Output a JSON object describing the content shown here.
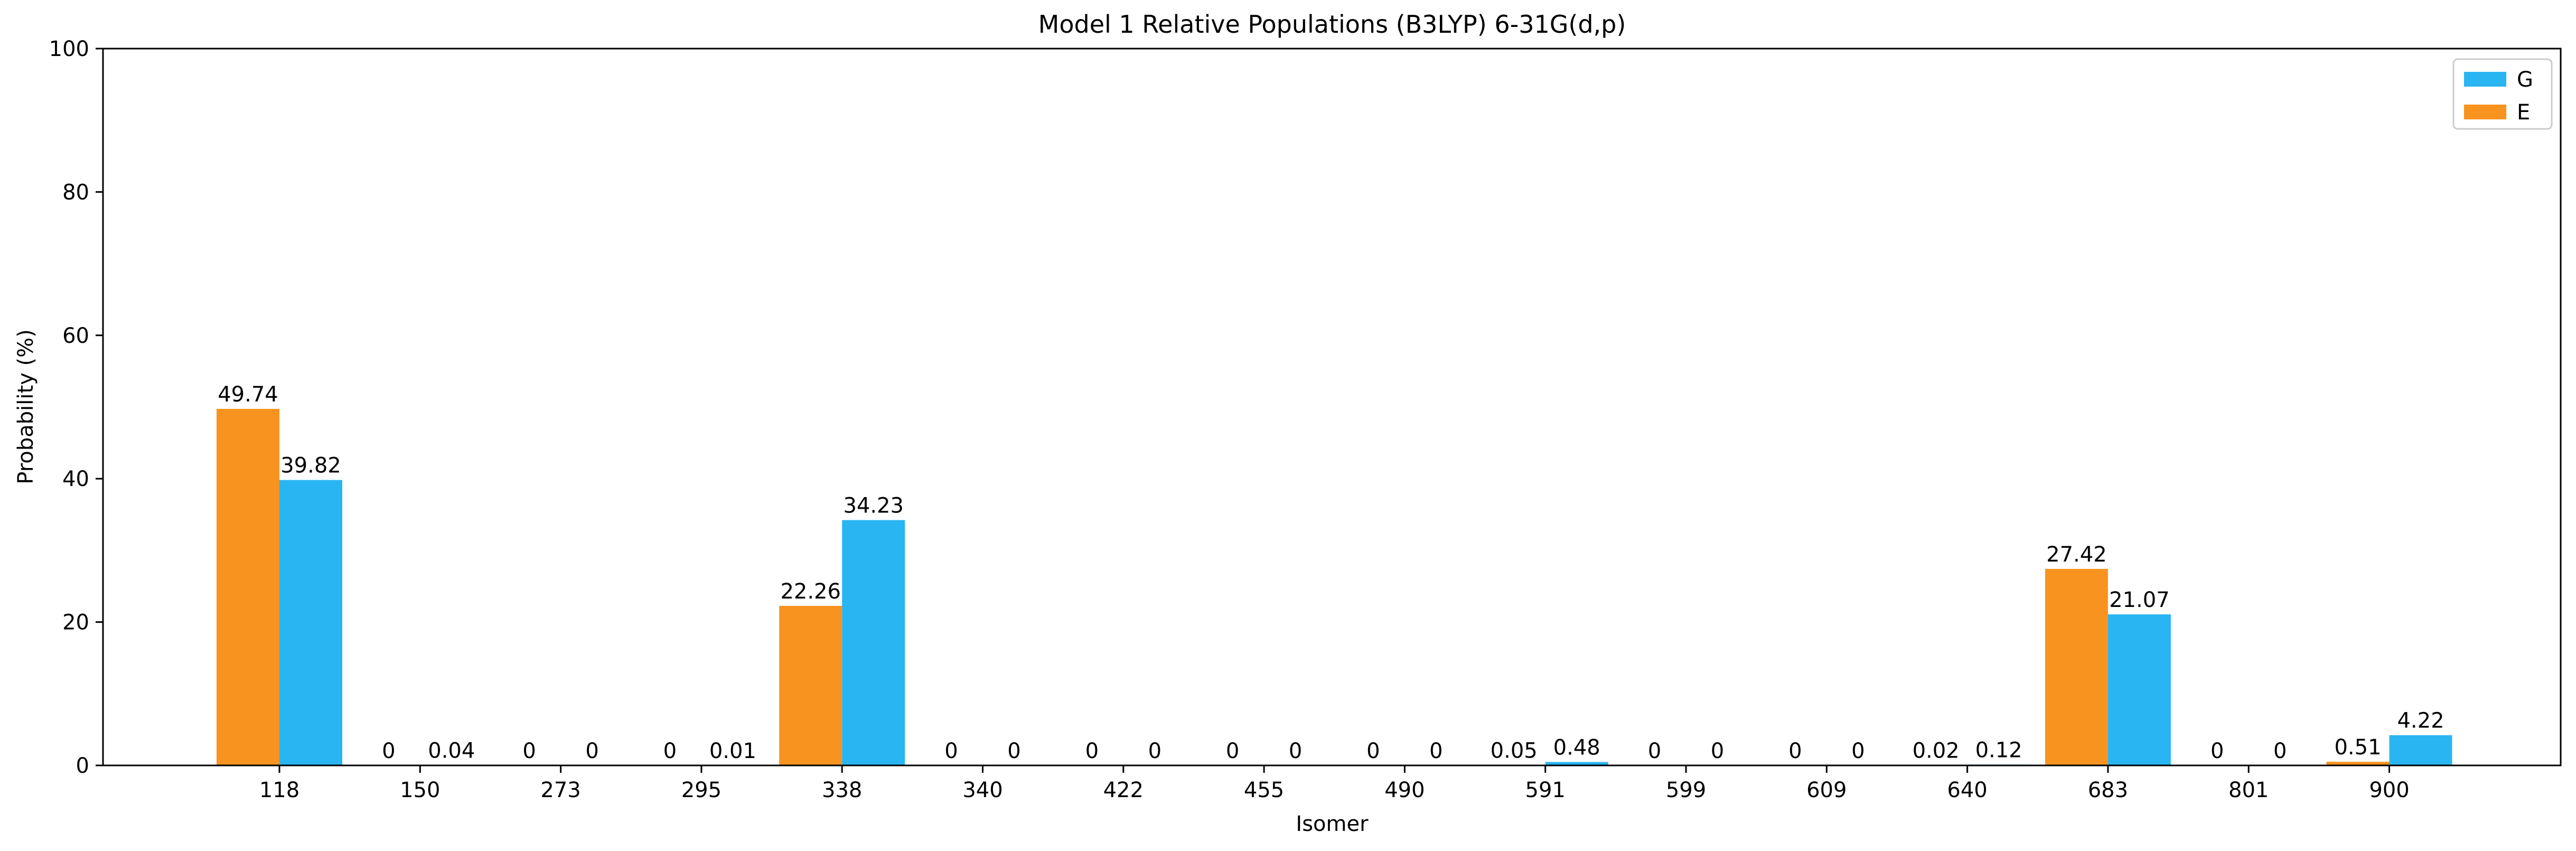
{
  "chart_data": {
    "type": "bar",
    "title": "Model 1 Relative Populations (B3LYP) 6-31G(d,p)",
    "xlabel": "Isomer",
    "ylabel": "Probability (%)",
    "ylim": [
      0,
      100
    ],
    "yticks": [
      "0",
      "20",
      "40",
      "60",
      "80",
      "100"
    ],
    "categories": [
      "118",
      "150",
      "273",
      "295",
      "338",
      "340",
      "422",
      "455",
      "490",
      "591",
      "599",
      "609",
      "640",
      "683",
      "801",
      "900"
    ],
    "series": [
      {
        "name": "E",
        "color": "#F7931E",
        "values": [
          49.74,
          0,
          0,
          0,
          22.26,
          0,
          0,
          0,
          0,
          0.05,
          0,
          0,
          0.02,
          27.42,
          0,
          0.51
        ],
        "labels": [
          "49.74",
          "0",
          "0",
          "0",
          "22.26",
          "0",
          "0",
          "0",
          "0",
          "0.05",
          "0",
          "0",
          "0.02",
          "27.42",
          "0",
          "0.51"
        ]
      },
      {
        "name": "G",
        "color": "#29B5F1",
        "values": [
          39.82,
          0.04,
          0,
          0.01,
          34.23,
          0,
          0,
          0,
          0,
          0.48,
          0,
          0,
          0.12,
          21.07,
          0,
          4.22
        ],
        "labels": [
          "39.82",
          "0.04",
          "0",
          "0.01",
          "34.23",
          "0",
          "0",
          "0",
          "0",
          "0.48",
          "0",
          "0",
          "0.12",
          "21.07",
          "0",
          "4.22"
        ]
      }
    ],
    "legend": {
      "placement": "top-right",
      "entries": [
        {
          "name": "G",
          "color": "#29B5F1"
        },
        {
          "name": "E",
          "color": "#F7931E"
        }
      ]
    },
    "grid": false
  }
}
